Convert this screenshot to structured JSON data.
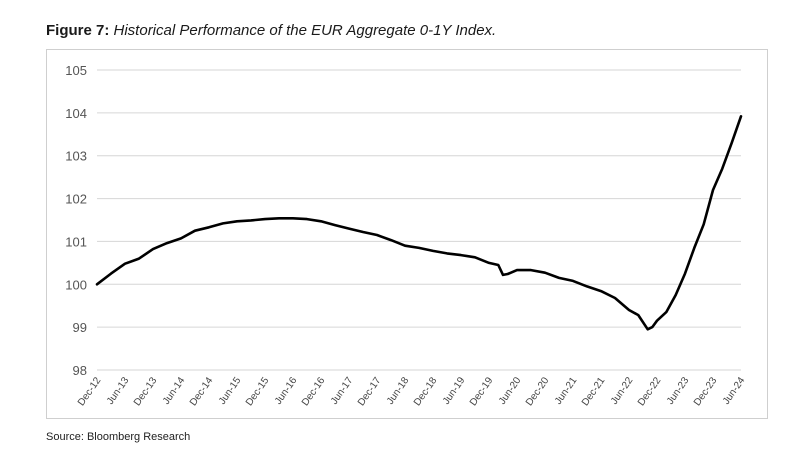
{
  "figure": {
    "label": "Figure 7:",
    "caption": "Historical Performance of the EUR Aggregate 0-1Y Index."
  },
  "source": "Source: Bloomberg Research",
  "chart_data": {
    "type": "line",
    "title": "Historical Performance of the EUR Aggregate 0-1Y Index.",
    "xlabel": "",
    "ylabel": "",
    "ylim": [
      98,
      105
    ],
    "yticks": [
      98,
      99,
      100,
      101,
      102,
      103,
      104,
      105
    ],
    "xticks": [
      "Dec-12",
      "Jun-13",
      "Dec-13",
      "Jun-14",
      "Dec-14",
      "Jun-15",
      "Dec-15",
      "Jun-16",
      "Dec-16",
      "Jun-17",
      "Dec-17",
      "Jun-18",
      "Dec-18",
      "Jun-19",
      "Dec-19",
      "Jun-20",
      "Dec-20",
      "Jun-21",
      "Dec-21",
      "Jun-22",
      "Dec-22",
      "Jun-23",
      "Dec-23",
      "Jun-24"
    ],
    "grid": "horizontal",
    "line_color": "#000000",
    "series": [
      {
        "points": [
          [
            "Dec-12",
            100.0
          ],
          [
            "Mar-13",
            100.25
          ],
          [
            "Jun-13",
            100.48
          ],
          [
            "Sep-13",
            100.6
          ],
          [
            "Dec-13",
            100.82
          ],
          [
            "Mar-14",
            100.96
          ],
          [
            "Jun-14",
            101.07
          ],
          [
            "Sep-14",
            101.25
          ],
          [
            "Dec-14",
            101.33
          ],
          [
            "Mar-15",
            101.42
          ],
          [
            "Jun-15",
            101.47
          ],
          [
            "Sep-15",
            101.49
          ],
          [
            "Dec-15",
            101.52
          ],
          [
            "Mar-16",
            101.54
          ],
          [
            "Jun-16",
            101.54
          ],
          [
            "Sep-16",
            101.52
          ],
          [
            "Dec-16",
            101.47
          ],
          [
            "Mar-17",
            101.38
          ],
          [
            "Jun-17",
            101.3
          ],
          [
            "Sep-17",
            101.22
          ],
          [
            "Dec-17",
            101.15
          ],
          [
            "Mar-18",
            101.03
          ],
          [
            "Jun-18",
            100.9
          ],
          [
            "Sep-18",
            100.85
          ],
          [
            "Dec-18",
            100.78
          ],
          [
            "Mar-19",
            100.72
          ],
          [
            "Jun-19",
            100.68
          ],
          [
            "Sep-19",
            100.63
          ],
          [
            "Dec-19",
            100.5
          ],
          [
            "Feb-20",
            100.45
          ],
          [
            "Mar-20",
            100.22
          ],
          [
            "Apr-20",
            100.24
          ],
          [
            "Jun-20",
            100.33
          ],
          [
            "Sep-20",
            100.33
          ],
          [
            "Dec-20",
            100.27
          ],
          [
            "Mar-21",
            100.15
          ],
          [
            "Jun-21",
            100.08
          ],
          [
            "Sep-21",
            99.95
          ],
          [
            "Dec-21",
            99.84
          ],
          [
            "Mar-22",
            99.68
          ],
          [
            "Jun-22",
            99.4
          ],
          [
            "Aug-22",
            99.28
          ],
          [
            "Oct-22",
            98.95
          ],
          [
            "Nov-22",
            99.0
          ],
          [
            "Dec-22",
            99.15
          ],
          [
            "Feb-23",
            99.35
          ],
          [
            "Apr-23",
            99.75
          ],
          [
            "Jun-23",
            100.25
          ],
          [
            "Aug-23",
            100.85
          ],
          [
            "Oct-23",
            101.4
          ],
          [
            "Dec-23",
            102.2
          ],
          [
            "Feb-24",
            102.7
          ],
          [
            "Apr-24",
            103.3
          ],
          [
            "Jun-24",
            103.92
          ]
        ]
      }
    ]
  }
}
